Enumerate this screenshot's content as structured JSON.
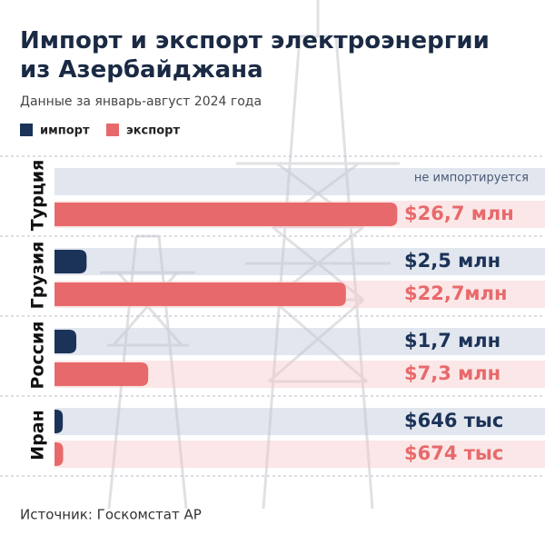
{
  "chart_data": {
    "type": "bar",
    "orientation": "horizontal",
    "title": "Импорт и экспорт электроэнергии из Азербайджана",
    "subtitle": "Данные за январь-август 2024 года",
    "source": "Источник: Госкомстат АР",
    "categories": [
      "Турция",
      "Грузия",
      "Россия",
      "Иран"
    ],
    "xlim": [
      0,
      30
    ],
    "series": [
      {
        "name": "импорт",
        "color": "#1b3358",
        "values": [
          null,
          2.5,
          1.7,
          0.646
        ],
        "value_labels": [
          "не импортируется",
          "$2,5 млн",
          "$1,7 млн",
          "$646 тыс"
        ]
      },
      {
        "name": "экспорт",
        "color": "#e8696b",
        "values": [
          26.7,
          22.7,
          7.3,
          0.674
        ],
        "value_labels": [
          "$26,7 млн",
          "$22,7млн",
          "$7,3 млн",
          "$674 тыс"
        ]
      }
    ]
  }
}
